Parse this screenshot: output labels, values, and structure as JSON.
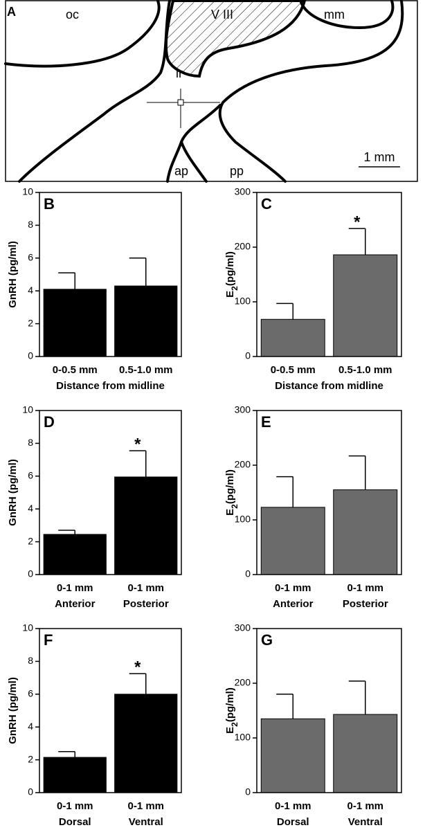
{
  "diagram": {
    "panel_label": "A",
    "labels": [
      "oc",
      "V III",
      "mm",
      "ir",
      "ap",
      "pp"
    ],
    "scale_bar": "1 mm"
  },
  "chart_data": [
    {
      "type": "bar",
      "panel_label": "B",
      "ylabel": [
        "GnRH (pg/ml)"
      ],
      "ylim": [
        0,
        10
      ],
      "yticks": [
        0,
        2,
        4,
        6,
        8,
        10
      ],
      "categories": [
        "0-0.5 mm",
        "0.5-1.0 mm"
      ],
      "xlabel": "Distance from midline",
      "color": "#000000",
      "values": [
        4.1,
        4.3
      ],
      "errors": [
        1.0,
        1.7
      ],
      "significance": [
        null,
        null
      ]
    },
    {
      "type": "bar",
      "panel_label": "C",
      "ylabel": [
        "E",
        "2",
        "(pg/ml)"
      ],
      "ylim": [
        0,
        300
      ],
      "yticks": [
        0,
        100,
        200,
        300
      ],
      "categories": [
        "0-0.5 mm",
        "0.5-1.0 mm"
      ],
      "xlabel": "Distance from midline",
      "color": "#6b6b6b",
      "values": [
        68,
        186
      ],
      "errors": [
        29,
        48
      ],
      "significance": [
        null,
        "*"
      ]
    },
    {
      "type": "bar",
      "panel_label": "D",
      "ylabel": [
        "GnRH (pg/ml)"
      ],
      "ylim": [
        0,
        10
      ],
      "yticks": [
        0,
        2,
        4,
        6,
        8,
        10
      ],
      "categories": [
        "0-1 mm",
        "0-1 mm"
      ],
      "category_sublabels": [
        "Anterior",
        "Posterior"
      ],
      "color": "#000000",
      "values": [
        2.45,
        5.95
      ],
      "errors": [
        0.25,
        1.6
      ],
      "significance": [
        null,
        "*"
      ]
    },
    {
      "type": "bar",
      "panel_label": "E",
      "ylabel": [
        "E",
        "2",
        "(pg/ml)"
      ],
      "ylim": [
        0,
        300
      ],
      "yticks": [
        0,
        100,
        200,
        300
      ],
      "categories": [
        "0-1 mm",
        "0-1 mm"
      ],
      "category_sublabels": [
        "Anterior",
        "Posterior"
      ],
      "color": "#6b6b6b",
      "values": [
        123,
        155
      ],
      "errors": [
        56,
        62
      ],
      "significance": [
        null,
        null
      ]
    },
    {
      "type": "bar",
      "panel_label": "F",
      "ylabel": [
        "GnRH (pg/ml)"
      ],
      "ylim": [
        0,
        10
      ],
      "yticks": [
        0,
        2,
        4,
        6,
        8,
        10
      ],
      "categories": [
        "0-1 mm",
        "0-1 mm"
      ],
      "category_sublabels": [
        "Dorsal",
        "Ventral"
      ],
      "color": "#000000",
      "values": [
        2.15,
        6.0
      ],
      "errors": [
        0.35,
        1.25
      ],
      "significance": [
        null,
        "*"
      ]
    },
    {
      "type": "bar",
      "panel_label": "G",
      "ylabel": [
        "E",
        "2",
        "(pg/ml)"
      ],
      "ylim": [
        0,
        300
      ],
      "yticks": [
        0,
        100,
        200,
        300
      ],
      "categories": [
        "0-1 mm",
        "0-1 mm"
      ],
      "category_sublabels": [
        "Dorsal",
        "Ventral"
      ],
      "color": "#6b6b6b",
      "values": [
        135,
        143
      ],
      "errors": [
        45,
        61
      ],
      "significance": [
        null,
        null
      ]
    }
  ]
}
